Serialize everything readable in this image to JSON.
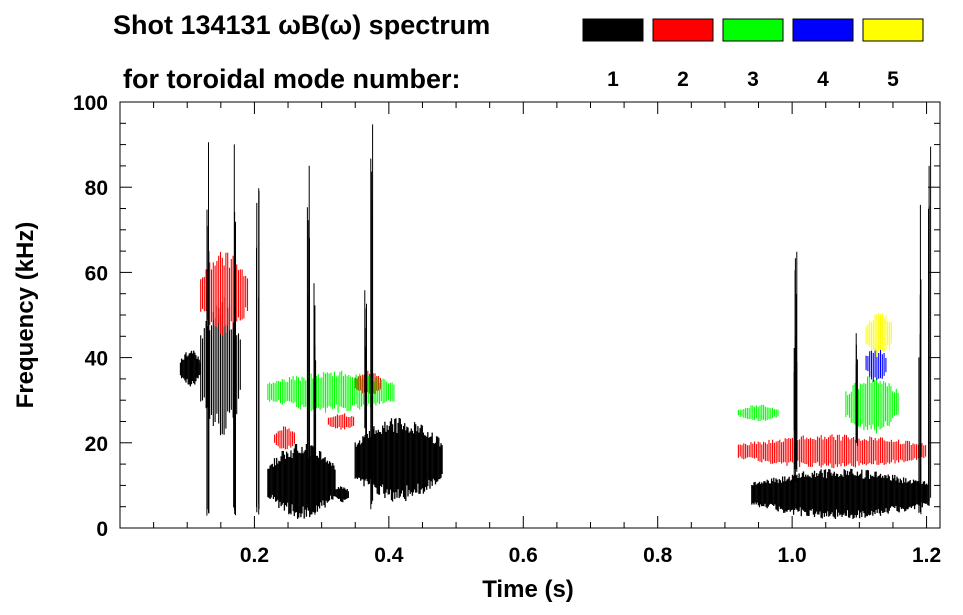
{
  "chart_data": {
    "type": "heatmap",
    "title_line1": "Shot 134131 ωB(ω) spectrum",
    "title_line2": "for toroidal mode number:",
    "xlabel": "Time (s)",
    "ylabel": "Frequency (kHz)",
    "xlim": [
      0.0,
      1.22
    ],
    "ylim": [
      0,
      100
    ],
    "x_ticks": [
      0.2,
      0.4,
      0.6,
      0.8,
      1.0,
      1.2
    ],
    "x_tick_labels": [
      "0.2",
      "0.4",
      "0.6",
      "0.8",
      "1.0",
      "1.2"
    ],
    "y_ticks": [
      0,
      20,
      40,
      60,
      80,
      100
    ],
    "y_tick_labels": [
      "0",
      "20",
      "40",
      "60",
      "80",
      "100"
    ],
    "legend": [
      {
        "label": "1",
        "color": "#000000"
      },
      {
        "label": "2",
        "color": "#ff0000"
      },
      {
        "label": "3",
        "color": "#00ff00"
      },
      {
        "label": "4",
        "color": "#0000ff"
      },
      {
        "label": "5",
        "color": "#ffff00"
      }
    ],
    "mode_regions": [
      {
        "mode": 1,
        "t_start": 0.09,
        "t_end": 0.12,
        "f_low": 33,
        "f_high": 42
      },
      {
        "mode": 1,
        "t_start": 0.12,
        "t_end": 0.18,
        "f_low": 20,
        "f_high": 55
      },
      {
        "mode": 1,
        "t_start": 0.22,
        "t_end": 0.32,
        "f_low": 2,
        "f_high": 20
      },
      {
        "mode": 1,
        "t_start": 0.32,
        "t_end": 0.34,
        "f_low": 6,
        "f_high": 10
      },
      {
        "mode": 1,
        "t_start": 0.35,
        "t_end": 0.48,
        "f_low": 6,
        "f_high": 26
      },
      {
        "mode": 1,
        "t_start": 0.94,
        "t_end": 1.205,
        "f_low": 2,
        "f_high": 14
      },
      {
        "mode": 2,
        "t_start": 0.12,
        "t_end": 0.19,
        "f_low": 45,
        "f_high": 65
      },
      {
        "mode": 2,
        "t_start": 0.23,
        "t_end": 0.26,
        "f_low": 18,
        "f_high": 24
      },
      {
        "mode": 2,
        "t_start": 0.31,
        "t_end": 0.35,
        "f_low": 23,
        "f_high": 27
      },
      {
        "mode": 2,
        "t_start": 0.35,
        "t_end": 0.39,
        "f_low": 31,
        "f_high": 37
      },
      {
        "mode": 2,
        "t_start": 0.92,
        "t_end": 1.2,
        "f_low": 14,
        "f_high": 22
      },
      {
        "mode": 3,
        "t_start": 0.22,
        "t_end": 0.41,
        "f_low": 27,
        "f_high": 37
      },
      {
        "mode": 3,
        "t_start": 0.92,
        "t_end": 0.98,
        "f_low": 25,
        "f_high": 29
      },
      {
        "mode": 3,
        "t_start": 1.08,
        "t_end": 1.16,
        "f_low": 22,
        "f_high": 36
      },
      {
        "mode": 4,
        "t_start": 1.11,
        "t_end": 1.14,
        "f_low": 34,
        "f_high": 43
      },
      {
        "mode": 5,
        "t_start": 1.11,
        "t_end": 1.15,
        "f_low": 40,
        "f_high": 51
      }
    ]
  }
}
